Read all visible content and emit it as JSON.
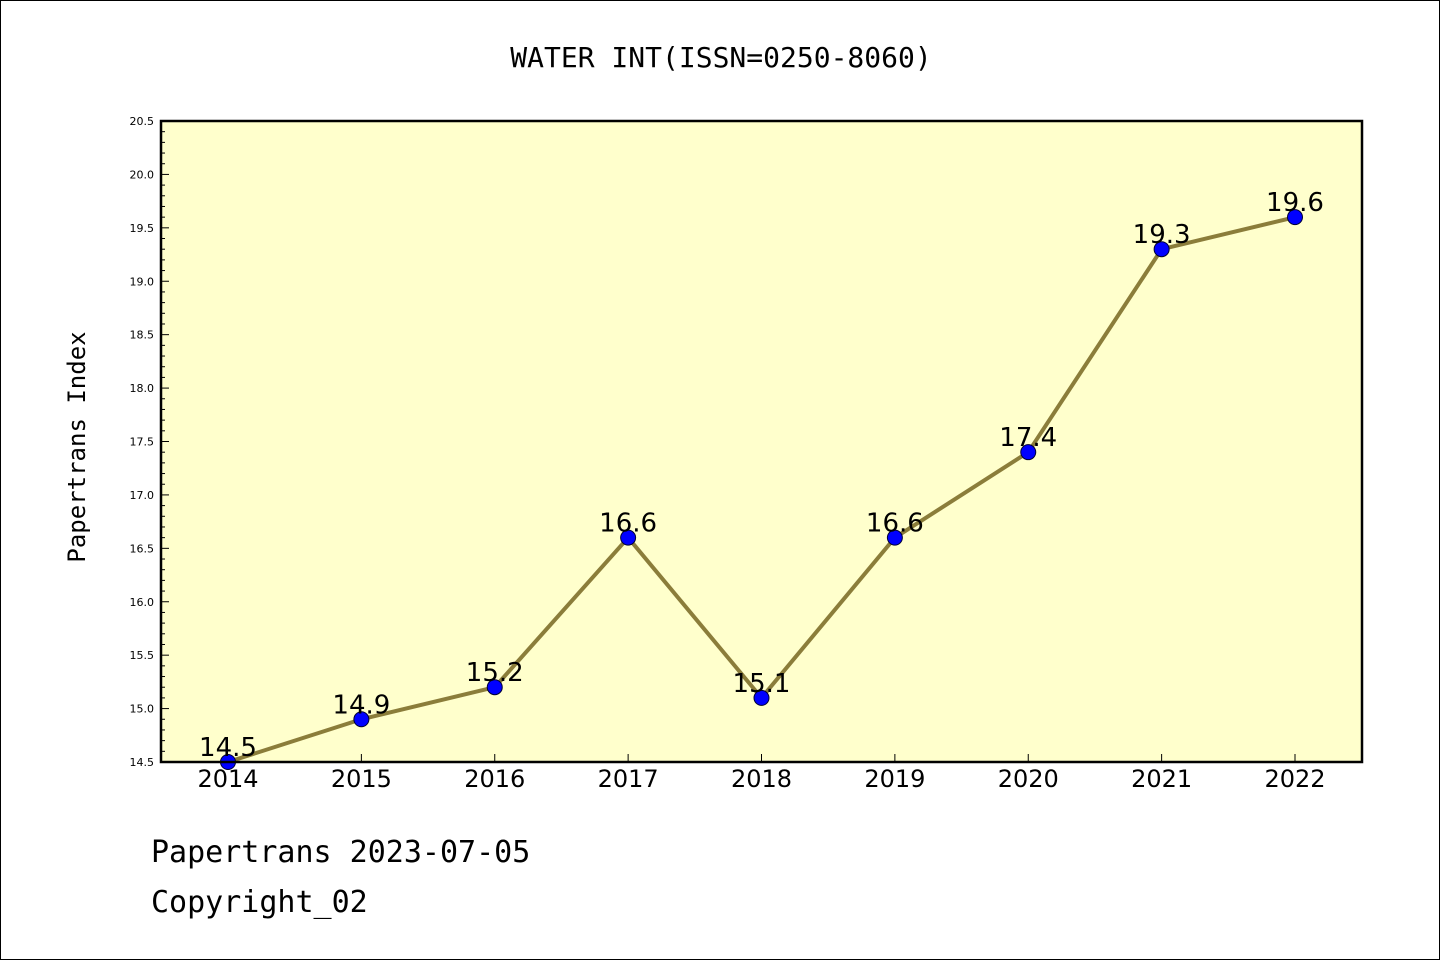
{
  "chart_data": {
    "type": "line",
    "title": "WATER INT(ISSN=0250-8060)",
    "xlabel": "",
    "ylabel": "Papertrans Index",
    "categories": [
      "2014",
      "2015",
      "2016",
      "2017",
      "2018",
      "2019",
      "2020",
      "2021",
      "2022"
    ],
    "series": [
      {
        "values": [
          14.5,
          14.9,
          15.2,
          16.6,
          15.1,
          16.6,
          17.4,
          19.3,
          19.6
        ]
      }
    ],
    "data_labels": [
      "14.5",
      "14.9",
      "15.2",
      "16.6",
      "15.1",
      "16.6",
      "17.4",
      "19.3",
      "19.6"
    ],
    "ylim": [
      14.5,
      20.5
    ],
    "yticks": [
      "14.5",
      "15.0",
      "15.5",
      "16.0",
      "16.5",
      "17.0",
      "17.5",
      "18.0",
      "18.5",
      "19.0",
      "19.5",
      "20.0",
      "20.5"
    ],
    "grid": false,
    "colors": {
      "plot_background": "#ffffcc",
      "line": "#8b7d3a",
      "marker": "#0000ff"
    }
  },
  "footer": {
    "date_line": "Papertrans 2023-07-05",
    "copyright_line": "Copyright_02"
  }
}
